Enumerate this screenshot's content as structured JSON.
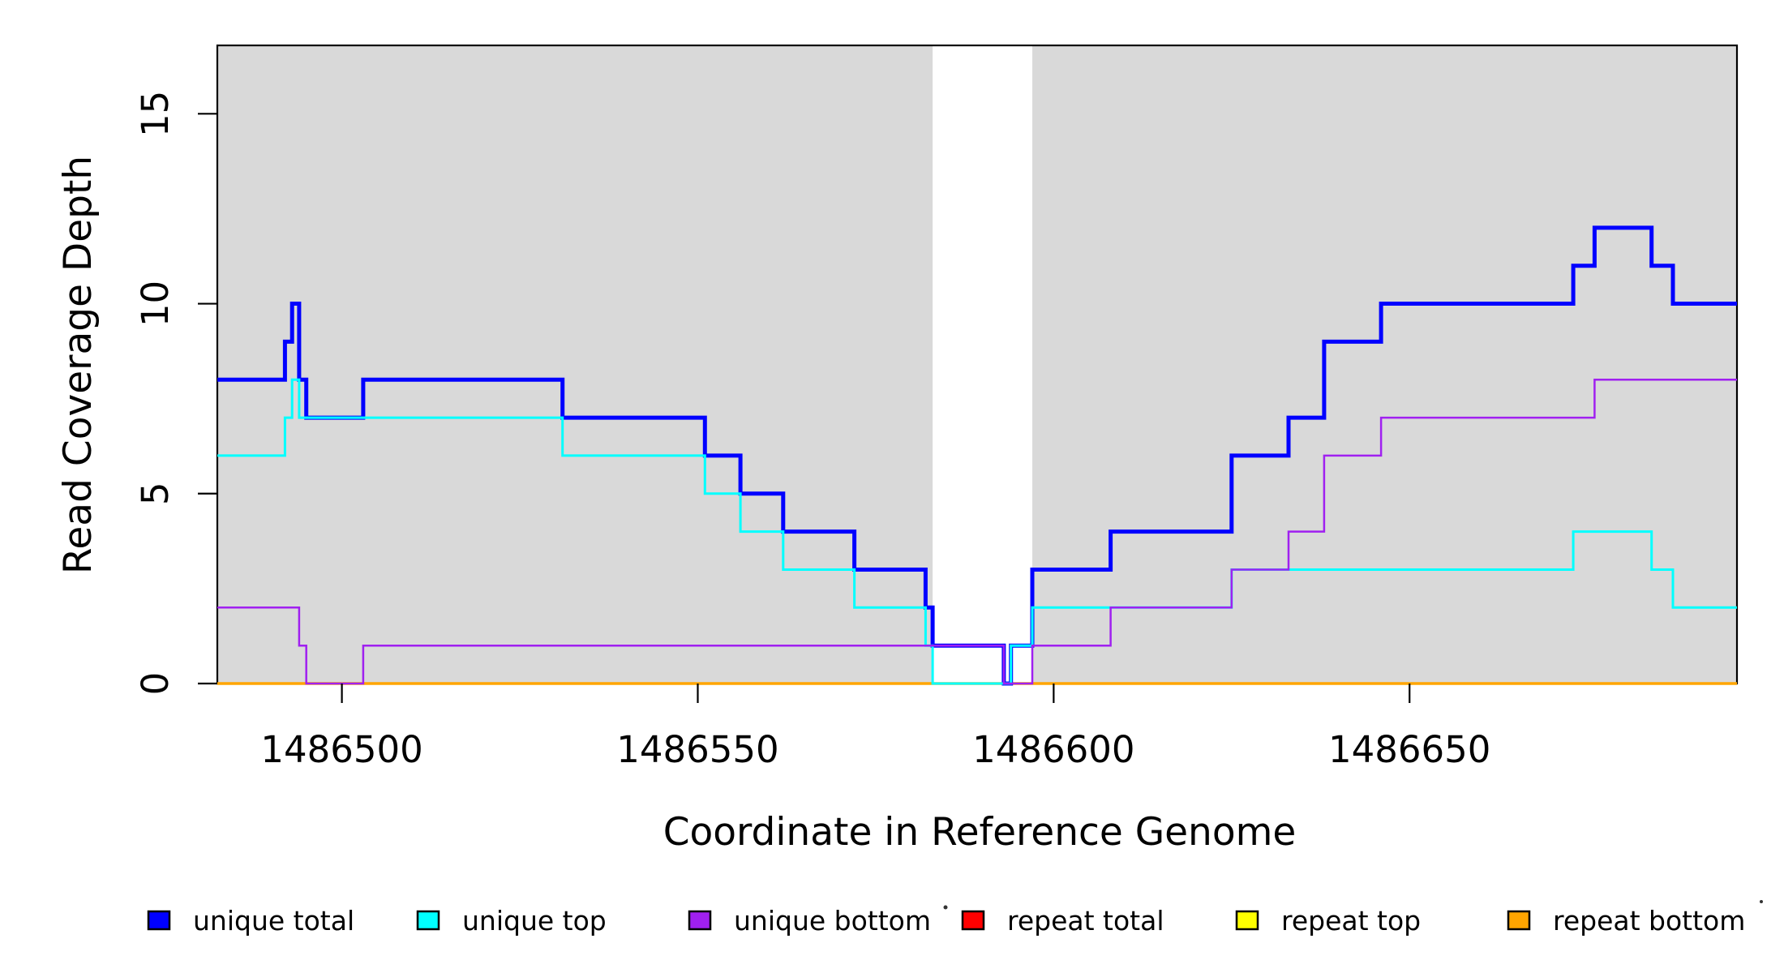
{
  "figure": {
    "y_axis": {
      "label": "Read Coverage Depth",
      "tick_labels": [
        "0",
        "5",
        "10",
        "15"
      ],
      "tick_values": [
        0,
        5,
        10,
        15
      ],
      "range": [
        0,
        16.8
      ]
    },
    "x_axis": {
      "label": "Coordinate in Reference Genome",
      "tick_labels": [
        "1486500",
        "1486550",
        "1486600",
        "1486650"
      ],
      "tick_values": [
        1486500,
        1486550,
        1486600,
        1486650
      ],
      "range": [
        1486482.5,
        1486696
      ]
    },
    "legend": {
      "items": [
        {
          "label": "unique total",
          "color": "#0000FF"
        },
        {
          "label": "unique top",
          "color": "#00FFFF"
        },
        {
          "label": "unique bottom",
          "color": "#A020F0"
        },
        {
          "label": "repeat total",
          "color": "#FF0000"
        },
        {
          "label": "repeat top",
          "color": "#FFFF00"
        },
        {
          "label": "repeat bottom",
          "color": "#FFA500"
        }
      ]
    },
    "plot_background_color": "#FFFFFF",
    "shaded_band_color": "#D9D9D9",
    "axis_color": "#000000"
  },
  "chart_data": {
    "type": "line",
    "step_style": "post",
    "title": "",
    "xlabel": "Coordinate in Reference Genome",
    "ylabel": "Read Coverage Depth",
    "xlim": [
      1486482.5,
      1486696
    ],
    "ylim": [
      0,
      16.8
    ],
    "x_ticks": [
      1486500,
      1486550,
      1486600,
      1486650
    ],
    "y_ticks": [
      0,
      5,
      10,
      15
    ],
    "grid": false,
    "legend_position": "bottom",
    "shaded_regions": [
      {
        "x_start": 1486482.5,
        "x_end": 1486583,
        "color": "#D9D9D9"
      },
      {
        "x_start": 1486597,
        "x_end": 1486696,
        "color": "#D9D9D9"
      }
    ],
    "series": [
      {
        "name": "unique total",
        "color": "#0000FF",
        "line_width": 5,
        "points": [
          [
            1486482.5,
            8
          ],
          [
            1486492,
            9
          ],
          [
            1486493,
            10
          ],
          [
            1486494,
            8
          ],
          [
            1486495,
            7
          ],
          [
            1486503,
            8
          ],
          [
            1486531,
            7
          ],
          [
            1486551,
            6
          ],
          [
            1486556,
            5
          ],
          [
            1486562,
            4
          ],
          [
            1486572,
            3
          ],
          [
            1486582,
            2
          ],
          [
            1486583,
            1
          ],
          [
            1486593,
            0
          ],
          [
            1486594,
            1
          ],
          [
            1486597,
            3
          ],
          [
            1486608,
            4
          ],
          [
            1486625,
            6
          ],
          [
            1486633,
            7
          ],
          [
            1486638,
            9
          ],
          [
            1486646,
            10
          ],
          [
            1486673,
            11
          ],
          [
            1486676,
            12
          ],
          [
            1486684,
            11
          ],
          [
            1486687,
            10
          ],
          [
            1486696,
            10
          ]
        ]
      },
      {
        "name": "unique top",
        "color": "#00FFFF",
        "line_width": 3,
        "points": [
          [
            1486482.5,
            6
          ],
          [
            1486492,
            7
          ],
          [
            1486493,
            8
          ],
          [
            1486494,
            7
          ],
          [
            1486531,
            6
          ],
          [
            1486551,
            5
          ],
          [
            1486556,
            4
          ],
          [
            1486562,
            3
          ],
          [
            1486572,
            2
          ],
          [
            1486582,
            1
          ],
          [
            1486583,
            0
          ],
          [
            1486594,
            1
          ],
          [
            1486597,
            2
          ],
          [
            1486625,
            3
          ],
          [
            1486673,
            4
          ],
          [
            1486684,
            3
          ],
          [
            1486687,
            2
          ],
          [
            1486696,
            2
          ]
        ]
      },
      {
        "name": "unique bottom",
        "color": "#A020F0",
        "line_width": 2.5,
        "points": [
          [
            1486482.5,
            2
          ],
          [
            1486494,
            1
          ],
          [
            1486495,
            0
          ],
          [
            1486503,
            1
          ],
          [
            1486593,
            0
          ],
          [
            1486597,
            1
          ],
          [
            1486608,
            2
          ],
          [
            1486625,
            3
          ],
          [
            1486633,
            4
          ],
          [
            1486638,
            6
          ],
          [
            1486646,
            7
          ],
          [
            1486676,
            8
          ],
          [
            1486696,
            8
          ]
        ]
      },
      {
        "name": "repeat total",
        "color": "#FF0000",
        "line_width": 2.5,
        "points": [
          [
            1486482.5,
            0
          ],
          [
            1486696,
            0
          ]
        ]
      },
      {
        "name": "repeat top",
        "color": "#FFFF00",
        "line_width": 2.5,
        "points": [
          [
            1486482.5,
            0
          ],
          [
            1486696,
            0
          ]
        ]
      },
      {
        "name": "repeat bottom",
        "color": "#FFA500",
        "line_width": 3.5,
        "points": [
          [
            1486482.5,
            0
          ],
          [
            1486696,
            0
          ]
        ]
      }
    ],
    "draw_order": [
      "repeat total",
      "repeat top",
      "repeat bottom",
      "unique total",
      "unique top",
      "unique bottom"
    ]
  }
}
